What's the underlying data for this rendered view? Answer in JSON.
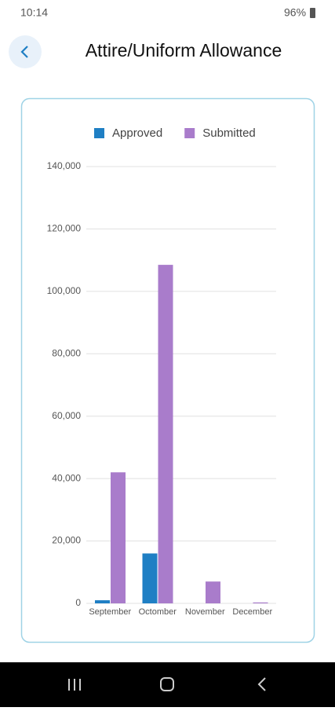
{
  "status_bar": {
    "time": "10:14",
    "battery": "96%"
  },
  "header": {
    "title": "Attire/Uniform Allowance"
  },
  "chart_data": {
    "type": "bar",
    "categories": [
      "September",
      "Octomber",
      "November",
      "December"
    ],
    "series": [
      {
        "name": "Approved",
        "color": "#1f7fc4",
        "values": [
          1000,
          16000,
          0,
          0
        ]
      },
      {
        "name": "Submitted",
        "color": "#a97ccb",
        "values": [
          42000,
          108500,
          7000,
          300
        ]
      }
    ],
    "ylim": [
      0,
      140000
    ],
    "yticks": [
      0,
      {
        "value": 20000,
        "label": "20,000"
      },
      {
        "value": 40000,
        "label": "40,000"
      },
      {
        "value": 60000,
        "label": "60,000"
      },
      {
        "value": 80000,
        "label": "80,000"
      },
      {
        "value": 100000,
        "label": "100,000"
      },
      {
        "value": 120000,
        "label": "120,000"
      },
      {
        "value": 140000,
        "label": "140,000"
      }
    ],
    "grid": true,
    "legend": "top"
  }
}
